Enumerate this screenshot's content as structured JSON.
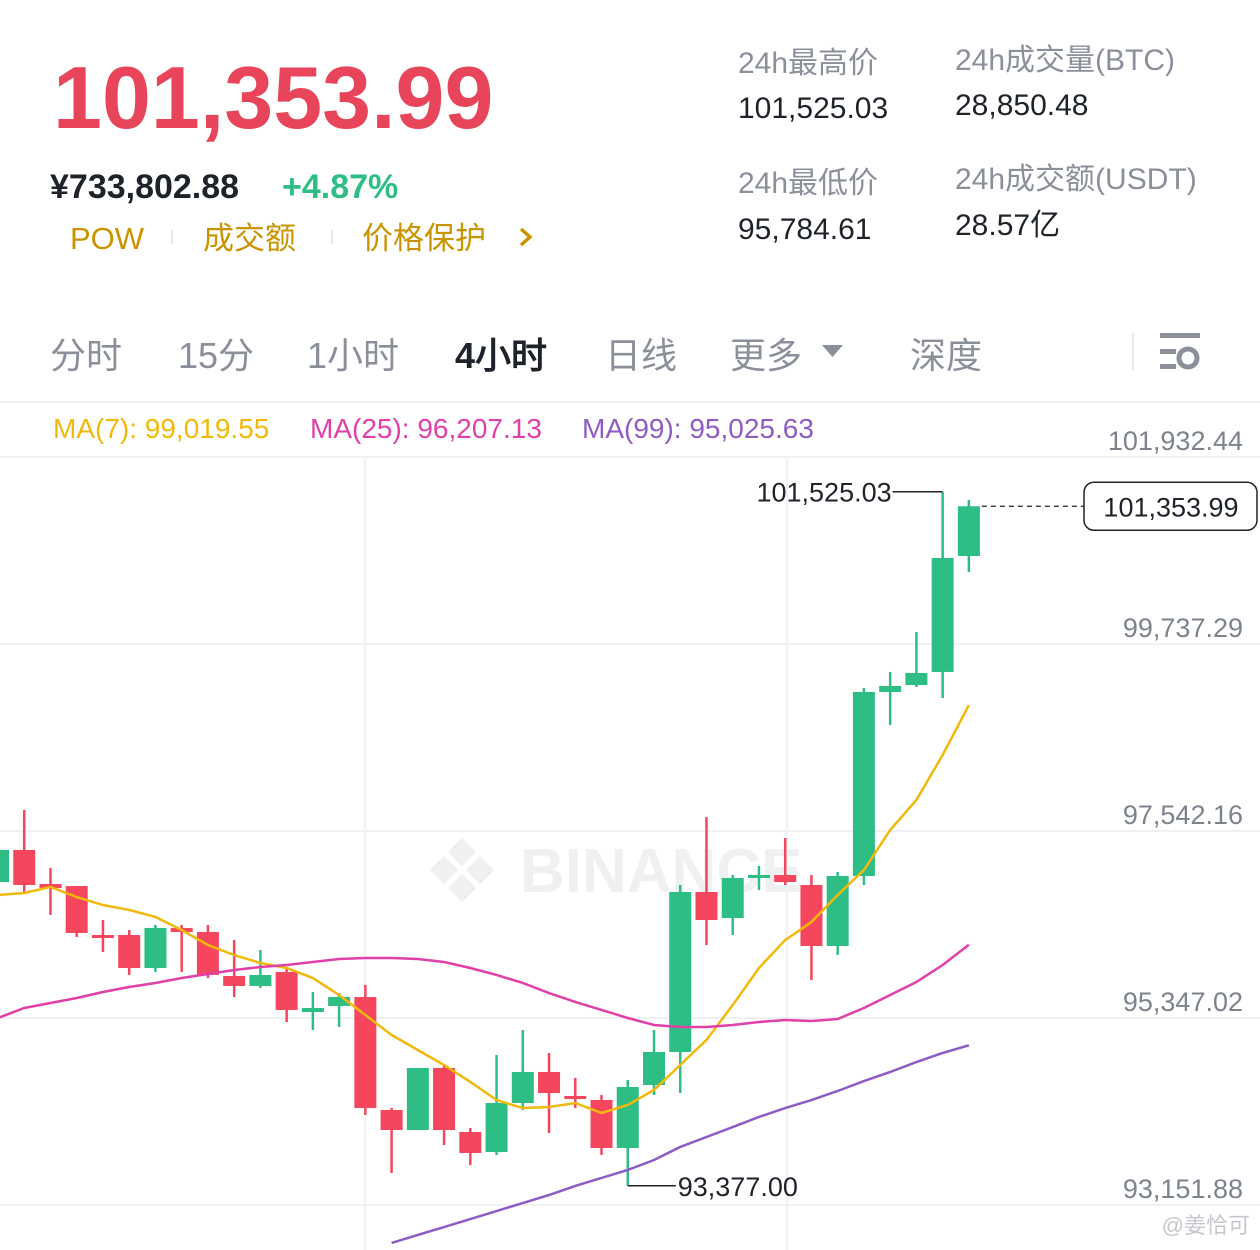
{
  "header": {
    "price": "101,353.99",
    "cny": "¥733,802.88",
    "change": "+4.87%",
    "tags": [
      "POW",
      "成交额",
      "价格保护"
    ]
  },
  "stats": [
    {
      "label": "24h最高价",
      "value": "101,525.03"
    },
    {
      "label": "24h成交量(BTC)",
      "value": "28,850.48"
    },
    {
      "label": "24h最低价",
      "value": "95,784.61"
    },
    {
      "label": "24h成交额(USDT)",
      "value": "28.57亿"
    }
  ],
  "tabs": [
    "分时",
    "15分",
    "1小时",
    "4小时",
    "日线",
    "更多",
    "深度"
  ],
  "active_tab": "4小时",
  "watermark": "BINANCE",
  "credit": "@姜恰可",
  "chart_data": {
    "type": "candlestick",
    "up_color": "#2ebd85",
    "down_color": "#f6465d",
    "open": [
      96943,
      97319,
      96920,
      96896,
      96321,
      96321,
      95934,
      96403,
      96356,
      95840,
      95723,
      95887,
      95417,
      95488,
      95593,
      94267,
      94032,
      94760,
      94009,
      93774,
      94349,
      94713,
      94431,
      94384,
      93821,
      94560,
      94948,
      96826,
      96521,
      96990,
      97026,
      96908,
      96192,
      97014,
      99174,
      99256,
      99409,
      100770
    ],
    "high": [
      97319,
      97789,
      97108,
      96896,
      96497,
      96380,
      96439,
      96439,
      96439,
      96262,
      96145,
      95934,
      95652,
      95640,
      95734,
      94290,
      94760,
      94795,
      94056,
      94913,
      95206,
      94936,
      94643,
      94443,
      94619,
      95206,
      96908,
      97706,
      97026,
      97131,
      97460,
      97026,
      97061,
      99221,
      99409,
      99878,
      101525.03,
      101428
    ],
    "low": [
      96943,
      96814,
      96556,
      96298,
      96122,
      95852,
      95887,
      95887,
      95816,
      95593,
      95699,
      95300,
      95206,
      95241,
      94208,
      93527,
      94032,
      93856,
      93621,
      93739,
      94267,
      93997,
      94290,
      93739,
      93377,
      94443,
      94466,
      96204,
      96321,
      96849,
      96908,
      95793,
      96086,
      96908,
      98786,
      99232,
      99103,
      100582
    ],
    "close": [
      97319,
      96908,
      96873,
      96345,
      96286,
      95934,
      96403,
      96356,
      95852,
      95723,
      95852,
      95441,
      95464,
      95593,
      94290,
      94032,
      94760,
      94032,
      93762,
      94349,
      94713,
      94466,
      94396,
      93821,
      94537,
      94948,
      96826,
      96497,
      96990,
      97026,
      96943,
      96192,
      97014,
      99174,
      99244,
      99397,
      100747,
      101353.99
    ],
    "series": [
      {
        "name": "MA(7): 99,019.55",
        "color": "#f0b90b",
        "values": [
          96791,
          96814,
          96885,
          96767,
          96673,
          96615,
          96533,
          96380,
          96204,
          96086,
          95993,
          95934,
          95816,
          95617,
          95382,
          95147,
          94971,
          94795,
          94596,
          94384,
          94290,
          94302,
          94349,
          94232,
          94326,
          94502,
          94795,
          95089,
          95499,
          95934,
          96262,
          96474,
          96791,
          97084,
          97554,
          97906,
          98434,
          99019.55
        ]
      },
      {
        "name": "MA(25): 96,207.13",
        "color": "#e040a8",
        "values": [
          95347,
          95464,
          95523,
          95582,
          95652,
          95711,
          95758,
          95816,
          95863,
          95910,
          95946,
          95969,
          96004,
          96039,
          96051,
          96051,
          96039,
          96004,
          95934,
          95852,
          95758,
          95640,
          95535,
          95441,
          95347,
          95265,
          95241,
          95241,
          95265,
          95300,
          95323,
          95312,
          95335,
          95464,
          95617,
          95769,
          95969,
          96207.13
        ]
      },
      {
        "name": "MA(99): 95,025.63",
        "color": "#8e5cc4",
        "values": [
          null,
          null,
          null,
          null,
          null,
          null,
          null,
          null,
          null,
          null,
          null,
          null,
          null,
          null,
          null,
          92706,
          92800,
          92893,
          92987,
          93081,
          93175,
          93269,
          93375,
          93469,
          93563,
          93680,
          93833,
          93950,
          94067,
          94185,
          94290,
          94384,
          94490,
          94607,
          94713,
          94830,
          94936,
          95025.63
        ]
      }
    ],
    "ylim": [
      92623.4,
      102578.0
    ],
    "yticks": [
      {
        "value": 101932.44,
        "label": "101,932.44"
      },
      {
        "value": 99737.29,
        "label": "99,737.29"
      },
      {
        "value": 97542.16,
        "label": "97,542.16"
      },
      {
        "value": 95347.02,
        "label": "95,347.02"
      },
      {
        "value": 93151.88,
        "label": "93,151.88"
      }
    ],
    "grid": true,
    "high_label": "101,525.03",
    "low_label": "93,377.00",
    "last_label": "101,353.99"
  }
}
